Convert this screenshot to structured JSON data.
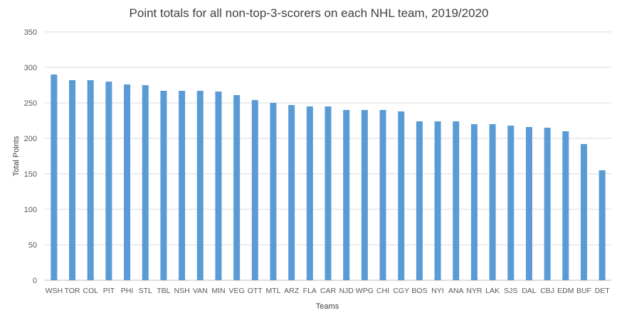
{
  "chart_data": {
    "type": "bar",
    "title": "Point totals for all non-top-3-scorers on each NHL team, 2019/2020",
    "xlabel": "Teams",
    "ylabel": "Total Points",
    "ylim": [
      0,
      350
    ],
    "yticks": [
      0,
      50,
      100,
      150,
      200,
      250,
      300,
      350
    ],
    "grid": true,
    "legend": "none",
    "bar_color": "#5b9bd5",
    "categories": [
      "WSH",
      "TOR",
      "COL",
      "PIT",
      "PHI",
      "STL",
      "TBL",
      "NSH",
      "VAN",
      "MIN",
      "VEG",
      "OTT",
      "MTL",
      "ARZ",
      "FLA",
      "CAR",
      "NJD",
      "WPG",
      "CHI",
      "CGY",
      "BOS",
      "NYI",
      "ANA",
      "NYR",
      "LAK",
      "SJS",
      "DAL",
      "CBJ",
      "EDM",
      "BUF",
      "DET"
    ],
    "values": [
      290,
      282,
      282,
      280,
      276,
      275,
      267,
      267,
      267,
      266,
      261,
      254,
      250,
      247,
      245,
      245,
      240,
      240,
      240,
      238,
      224,
      224,
      224,
      220,
      220,
      218,
      216,
      215,
      210,
      192,
      155
    ]
  }
}
